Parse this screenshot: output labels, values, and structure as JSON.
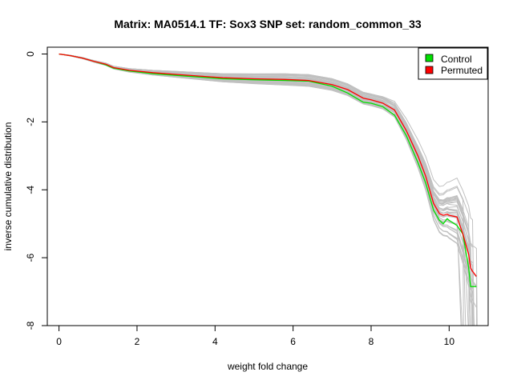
{
  "chart_data": {
    "type": "line",
    "title": "Matrix: MA0514.1 TF: Sox3 SNP set: random_common_33",
    "xlabel": "weight fold change",
    "ylabel": "inverse cumulative distribution",
    "xlim": [
      -0.3,
      11.0
    ],
    "ylim": [
      -8.0,
      0.2
    ],
    "xticks": [
      0,
      2,
      4,
      6,
      8,
      10
    ],
    "yticks": [
      0,
      -2,
      -4,
      -6,
      -8
    ],
    "xtick_labels": [
      "0",
      "2",
      "4",
      "6",
      "8",
      "10"
    ],
    "ytick_labels": [
      "0",
      "-2",
      "-4",
      "-6",
      "-8"
    ],
    "grid": false,
    "legend_position": "top-right",
    "colors": {
      "Control": "#00e000",
      "Permuted": "#ff0000",
      "background_series": "#c0c0c0"
    },
    "series": [
      {
        "name": "Control",
        "x": [
          0,
          0.3,
          0.6,
          0.9,
          1.2,
          1.4,
          1.8,
          2.4,
          3.0,
          3.6,
          4.2,
          5.0,
          5.8,
          6.4,
          7.0,
          7.4,
          7.8,
          8.0,
          8.3,
          8.6,
          8.9,
          9.2,
          9.4,
          9.6,
          9.75,
          9.85,
          9.95,
          10.0,
          10.2,
          10.35,
          10.5,
          10.55,
          10.6,
          10.7
        ],
        "y": [
          0,
          -0.05,
          -0.12,
          -0.22,
          -0.32,
          -0.42,
          -0.5,
          -0.58,
          -0.63,
          -0.68,
          -0.73,
          -0.76,
          -0.78,
          -0.8,
          -0.95,
          -1.15,
          -1.42,
          -1.45,
          -1.55,
          -1.8,
          -2.4,
          -3.2,
          -3.8,
          -4.6,
          -4.9,
          -5.0,
          -4.85,
          -4.9,
          -5.05,
          -5.3,
          -6.3,
          -6.85,
          -6.85,
          -6.85
        ]
      },
      {
        "name": "Permuted",
        "x": [
          0,
          0.3,
          0.6,
          0.9,
          1.2,
          1.4,
          1.8,
          2.4,
          3.0,
          3.6,
          4.2,
          5.0,
          5.8,
          6.4,
          7.0,
          7.4,
          7.8,
          8.0,
          8.3,
          8.6,
          8.9,
          9.2,
          9.4,
          9.6,
          9.75,
          9.85,
          9.95,
          10.0,
          10.2,
          10.35,
          10.5,
          10.55,
          10.6,
          10.7
        ],
        "y": [
          0,
          -0.05,
          -0.12,
          -0.22,
          -0.3,
          -0.4,
          -0.48,
          -0.55,
          -0.6,
          -0.65,
          -0.7,
          -0.73,
          -0.75,
          -0.78,
          -0.9,
          -1.05,
          -1.3,
          -1.35,
          -1.45,
          -1.65,
          -2.25,
          -3.0,
          -3.6,
          -4.4,
          -4.7,
          -4.75,
          -4.72,
          -4.75,
          -4.8,
          -5.3,
          -5.9,
          -6.3,
          -6.4,
          -6.55
        ]
      }
    ]
  }
}
